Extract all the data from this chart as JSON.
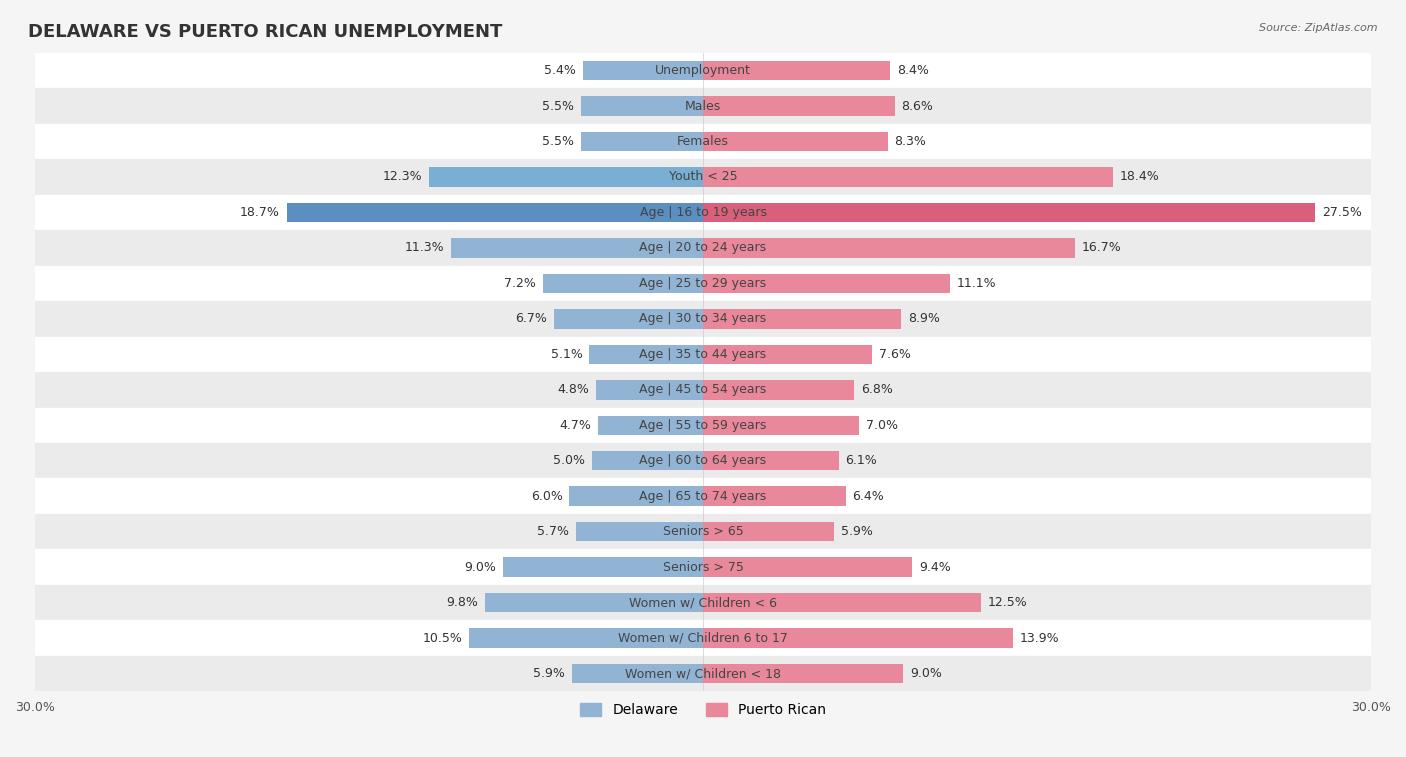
{
  "title": "DELAWARE VS PUERTO RICAN UNEMPLOYMENT",
  "source": "Source: ZipAtlas.com",
  "categories": [
    "Unemployment",
    "Males",
    "Females",
    "Youth < 25",
    "Age | 16 to 19 years",
    "Age | 20 to 24 years",
    "Age | 25 to 29 years",
    "Age | 30 to 34 years",
    "Age | 35 to 44 years",
    "Age | 45 to 54 years",
    "Age | 55 to 59 years",
    "Age | 60 to 64 years",
    "Age | 65 to 74 years",
    "Seniors > 65",
    "Seniors > 75",
    "Women w/ Children < 6",
    "Women w/ Children 6 to 17",
    "Women w/ Children < 18"
  ],
  "delaware": [
    5.4,
    5.5,
    5.5,
    12.3,
    18.7,
    11.3,
    7.2,
    6.7,
    5.1,
    4.8,
    4.7,
    5.0,
    6.0,
    5.7,
    9.0,
    9.8,
    10.5,
    5.9
  ],
  "puerto_rican": [
    8.4,
    8.6,
    8.3,
    18.4,
    27.5,
    16.7,
    11.1,
    8.9,
    7.6,
    6.8,
    7.0,
    6.1,
    6.4,
    5.9,
    9.4,
    12.5,
    13.9,
    9.0
  ],
  "delaware_color": "#92b4d4",
  "puerto_rican_color": "#e8889a",
  "highlight_delaware_color": "#5a8fc0",
  "highlight_puerto_rican_color": "#d95f7a",
  "background_color": "#f5f5f5",
  "row_colors": [
    "#ffffff",
    "#ebebeb"
  ],
  "axis_limit": 30.0,
  "bar_height": 0.55,
  "label_fontsize": 9,
  "title_fontsize": 13,
  "legend_fontsize": 10
}
